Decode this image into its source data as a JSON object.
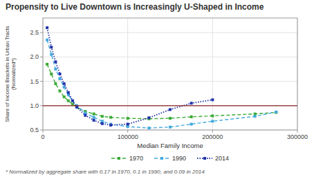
{
  "chart_data": {
    "type": "line",
    "title": "Propensity to Live Downtown is Increasingly U-Shaped in Income",
    "x_label": "Median Family Income",
    "y_label": "Share of Income Brackets in Urban Tracts\n(Normalized*)",
    "annotations": [
      "* Normalized by aggregate share with 0.17 in 1970, 0.1 in 1990, and 0.09 in 2014"
    ],
    "xlim": [
      0,
      300000
    ],
    "ylim": [
      0.5,
      2.8
    ],
    "xticks": [
      0,
      100000,
      200000,
      300000
    ],
    "yticks": [
      0.5,
      {
        "value": 1.0,
        "label": "1.0"
      },
      1.5,
      {
        "value": 2.0,
        "label": "2.0"
      },
      2.5
    ],
    "grid": true,
    "legend": "bottom",
    "reference_line": {
      "value": 1.0,
      "color": "#8B2020"
    },
    "series": [
      {
        "name": "1970",
        "color": "#3aaa35",
        "line_style": "dashed",
        "marker": "square",
        "x": [
          5000,
          10000,
          15000,
          20000,
          25000,
          30000,
          35000,
          40000,
          50000,
          60000,
          70000,
          80000,
          100000,
          125000,
          150000,
          175000,
          200000,
          250000,
          275000
        ],
        "values": [
          1.85,
          1.65,
          1.45,
          1.3,
          1.18,
          1.1,
          1.03,
          0.97,
          0.88,
          0.83,
          0.78,
          0.76,
          0.74,
          0.73,
          0.74,
          0.77,
          0.79,
          0.83,
          0.86
        ]
      },
      {
        "name": "1990",
        "color": "#44aadd",
        "line_style": "dashed",
        "marker": "square",
        "x": [
          5000,
          10000,
          15000,
          20000,
          25000,
          30000,
          35000,
          40000,
          50000,
          60000,
          70000,
          80000,
          100000,
          125000,
          150000,
          175000,
          200000,
          250000,
          275000
        ],
        "values": [
          2.35,
          2.05,
          1.75,
          1.55,
          1.38,
          1.22,
          1.1,
          1.0,
          0.85,
          0.76,
          0.68,
          0.62,
          0.57,
          0.54,
          0.56,
          0.62,
          0.68,
          0.78,
          0.87
        ]
      },
      {
        "name": "2014",
        "color": "#2233aa",
        "line_style": "dotted",
        "marker": "square",
        "x": [
          5000,
          10000,
          15000,
          20000,
          25000,
          30000,
          35000,
          40000,
          50000,
          60000,
          70000,
          80000,
          100000,
          125000,
          150000,
          175000,
          200000
        ],
        "values": [
          2.6,
          2.2,
          1.9,
          1.65,
          1.45,
          1.27,
          1.1,
          0.97,
          0.8,
          0.7,
          0.63,
          0.6,
          0.62,
          0.75,
          0.92,
          1.05,
          1.12
        ]
      }
    ]
  }
}
